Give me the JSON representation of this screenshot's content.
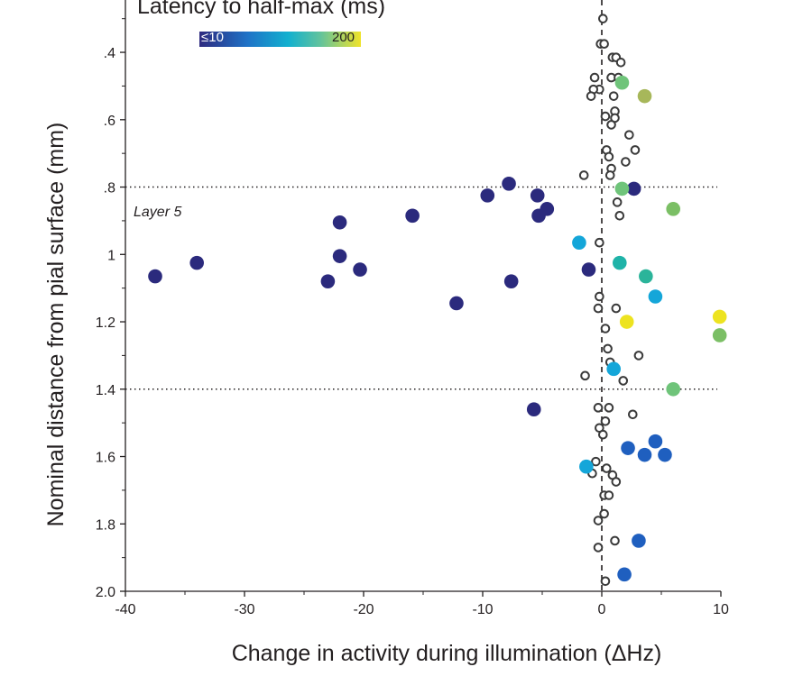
{
  "chart_data": {
    "type": "scatter",
    "xlabel": "Change in activity during illumination (ΔHz)",
    "ylabel": "Nominal distance from pial surface (mm)",
    "xlim": [
      -40,
      10
    ],
    "ylim": [
      2.0,
      0.25
    ],
    "x_ticks": [
      -40,
      -30,
      -20,
      -10,
      0,
      10
    ],
    "x_tick_labels": [
      "-40",
      "-30",
      "-20",
      "-10",
      "0",
      "10"
    ],
    "y_ticks": [
      0.4,
      0.6,
      0.8,
      1.0,
      1.2,
      1.4,
      1.6,
      1.8,
      2.0
    ],
    "y_tick_labels": [
      ".4",
      ".6",
      ".8",
      "1",
      "1.2",
      "1.4",
      "1.6",
      "1.8",
      "2.0"
    ],
    "reference_lines": {
      "vertical_dashed_x": 0,
      "horizontal_dotted_y": [
        0.8,
        1.4
      ]
    },
    "annotation": "Layer 5",
    "legend": {
      "title": "Latency to half-max (ms)",
      "min_label": "≤10",
      "max_label": "200",
      "colorscale": [
        "#2e2a7f",
        "#1f73c7",
        "#12b0cf",
        "#62c39c",
        "#f0e32a"
      ]
    },
    "filled_points": [
      {
        "x": -37.5,
        "y": 1.065,
        "color": "#2b2a7d"
      },
      {
        "x": -34.0,
        "y": 1.025,
        "color": "#2b2a7d"
      },
      {
        "x": -23.0,
        "y": 1.08,
        "color": "#2b2a7d"
      },
      {
        "x": -22.0,
        "y": 0.905,
        "color": "#2b2a7d"
      },
      {
        "x": -22.0,
        "y": 1.005,
        "color": "#2b2a7d"
      },
      {
        "x": -20.3,
        "y": 1.045,
        "color": "#2b2a7d"
      },
      {
        "x": -15.9,
        "y": 0.885,
        "color": "#2b2a7d"
      },
      {
        "x": -12.2,
        "y": 1.145,
        "color": "#2b2a7d"
      },
      {
        "x": -9.6,
        "y": 0.825,
        "color": "#2b2a7d"
      },
      {
        "x": -7.8,
        "y": 0.79,
        "color": "#2b2a7d"
      },
      {
        "x": -7.6,
        "y": 1.08,
        "color": "#2b2a7d"
      },
      {
        "x": -5.4,
        "y": 0.825,
        "color": "#2b2a7d"
      },
      {
        "x": -5.3,
        "y": 0.885,
        "color": "#2b2a7d"
      },
      {
        "x": -4.6,
        "y": 0.865,
        "color": "#2b2a7d"
      },
      {
        "x": -5.7,
        "y": 1.46,
        "color": "#2b2a7d"
      },
      {
        "x": -1.9,
        "y": 0.965,
        "color": "#14a6d9"
      },
      {
        "x": -1.1,
        "y": 1.045,
        "color": "#2b2a7d"
      },
      {
        "x": 2.7,
        "y": 0.805,
        "color": "#2b2a7d"
      },
      {
        "x": 1.7,
        "y": 0.805,
        "color": "#6fc47a"
      },
      {
        "x": 1.7,
        "y": 0.49,
        "color": "#6fc47a"
      },
      {
        "x": 3.6,
        "y": 0.53,
        "color": "#a7b75a"
      },
      {
        "x": 6.0,
        "y": 0.865,
        "color": "#7bbf65"
      },
      {
        "x": 1.5,
        "y": 1.025,
        "color": "#1fb3a8"
      },
      {
        "x": 3.7,
        "y": 1.065,
        "color": "#2bb49a"
      },
      {
        "x": 4.5,
        "y": 1.125,
        "color": "#14a6d9"
      },
      {
        "x": 2.1,
        "y": 1.2,
        "color": "#ede320"
      },
      {
        "x": 9.9,
        "y": 1.185,
        "color": "#ede320"
      },
      {
        "x": 9.9,
        "y": 1.24,
        "color": "#7bbf65"
      },
      {
        "x": 1.0,
        "y": 1.34,
        "color": "#14a6d9"
      },
      {
        "x": 6.0,
        "y": 1.4,
        "color": "#6fc47a"
      },
      {
        "x": 2.2,
        "y": 1.575,
        "color": "#1f5fbf"
      },
      {
        "x": 3.6,
        "y": 1.595,
        "color": "#1f5fbf"
      },
      {
        "x": 4.5,
        "y": 1.555,
        "color": "#1f5fbf"
      },
      {
        "x": 5.3,
        "y": 1.595,
        "color": "#1f5fbf"
      },
      {
        "x": -1.3,
        "y": 1.63,
        "color": "#14a6d9"
      },
      {
        "x": 3.1,
        "y": 1.85,
        "color": "#1f5fbf"
      },
      {
        "x": 1.9,
        "y": 1.95,
        "color": "#1f5fbf"
      }
    ],
    "open_points": [
      {
        "x": 0.1,
        "y": 0.3
      },
      {
        "x": -0.1,
        "y": 0.375
      },
      {
        "x": 0.2,
        "y": 0.375
      },
      {
        "x": 0.9,
        "y": 0.415
      },
      {
        "x": 1.2,
        "y": 0.415
      },
      {
        "x": 1.6,
        "y": 0.43
      },
      {
        "x": -0.6,
        "y": 0.475
      },
      {
        "x": 0.8,
        "y": 0.475
      },
      {
        "x": 1.4,
        "y": 0.475
      },
      {
        "x": -0.2,
        "y": 0.51
      },
      {
        "x": -0.7,
        "y": 0.51
      },
      {
        "x": -0.9,
        "y": 0.53
      },
      {
        "x": 1.0,
        "y": 0.53
      },
      {
        "x": 1.1,
        "y": 0.575
      },
      {
        "x": 0.3,
        "y": 0.59
      },
      {
        "x": 1.1,
        "y": 0.595
      },
      {
        "x": 0.8,
        "y": 0.615
      },
      {
        "x": 2.3,
        "y": 0.645
      },
      {
        "x": 0.4,
        "y": 0.69
      },
      {
        "x": 2.8,
        "y": 0.69
      },
      {
        "x": 0.6,
        "y": 0.71
      },
      {
        "x": 2.0,
        "y": 0.725
      },
      {
        "x": 0.8,
        "y": 0.745
      },
      {
        "x": -1.5,
        "y": 0.765
      },
      {
        "x": 0.7,
        "y": 0.765
      },
      {
        "x": 1.3,
        "y": 0.845
      },
      {
        "x": 1.5,
        "y": 0.885
      },
      {
        "x": -0.2,
        "y": 0.965
      },
      {
        "x": -0.2,
        "y": 1.125
      },
      {
        "x": -0.3,
        "y": 1.16
      },
      {
        "x": 1.2,
        "y": 1.16
      },
      {
        "x": 0.3,
        "y": 1.22
      },
      {
        "x": 0.5,
        "y": 1.28
      },
      {
        "x": 0.7,
        "y": 1.32
      },
      {
        "x": 3.1,
        "y": 1.3
      },
      {
        "x": -1.4,
        "y": 1.36
      },
      {
        "x": 1.8,
        "y": 1.375
      },
      {
        "x": -0.3,
        "y": 1.455
      },
      {
        "x": 0.6,
        "y": 1.455
      },
      {
        "x": 0.3,
        "y": 1.495
      },
      {
        "x": 2.6,
        "y": 1.475
      },
      {
        "x": -0.2,
        "y": 1.515
      },
      {
        "x": 0.1,
        "y": 1.535
      },
      {
        "x": -0.5,
        "y": 1.615
      },
      {
        "x": 0.4,
        "y": 1.635
      },
      {
        "x": -0.8,
        "y": 1.65
      },
      {
        "x": 0.9,
        "y": 1.655
      },
      {
        "x": 1.2,
        "y": 1.675
      },
      {
        "x": 0.2,
        "y": 1.715
      },
      {
        "x": 0.6,
        "y": 1.715
      },
      {
        "x": 0.2,
        "y": 1.77
      },
      {
        "x": -0.3,
        "y": 1.79
      },
      {
        "x": 1.1,
        "y": 1.85
      },
      {
        "x": -0.3,
        "y": 1.87
      },
      {
        "x": 0.3,
        "y": 1.97
      }
    ]
  }
}
